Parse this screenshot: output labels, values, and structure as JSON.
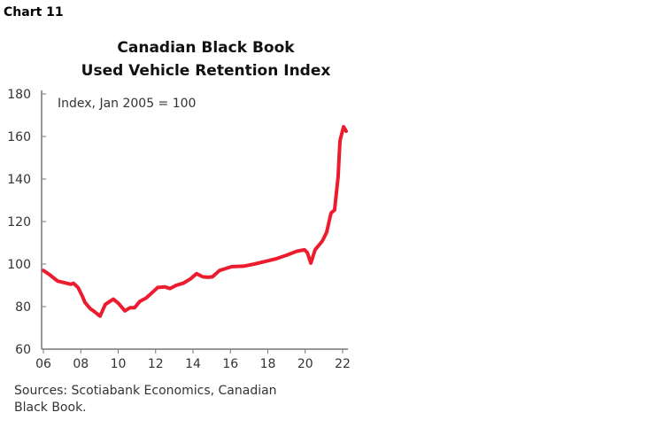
{
  "chart_label": "Chart 11",
  "chart_data": {
    "type": "line",
    "title": "Canadian Black Book",
    "subtitle": "Used Vehicle Retention Index",
    "annotation": "Index, Jan 2005 = 100",
    "source": "Sources: Scotiabank Economics, Canadian Black Book.",
    "source_lines": [
      "Sources: Scotiabank Economics, Canadian",
      "Black Book."
    ],
    "xlim": [
      2006,
      2022
    ],
    "ylim": [
      60,
      180
    ],
    "xticks": [
      2006,
      2008,
      2010,
      2012,
      2014,
      2016,
      2018,
      2020,
      2022
    ],
    "xtick_labels": [
      "06",
      "08",
      "10",
      "12",
      "14",
      "16",
      "18",
      "20",
      "22"
    ],
    "yticks": [
      60,
      80,
      100,
      120,
      140,
      160,
      180
    ],
    "ytick_labels": [
      "60",
      "80",
      "100",
      "120",
      "140",
      "160",
      "180"
    ],
    "grid": false,
    "line_color": "#EC1C2E",
    "series": [
      {
        "x": [
          2006.0,
          2006.33,
          2006.76,
          2007.23,
          2007.47,
          2007.61,
          2007.85,
          2008.08,
          2008.22,
          2008.51,
          2008.75,
          2009.03,
          2009.31,
          2009.74,
          2010.02,
          2010.36,
          2010.64,
          2010.88,
          2011.16,
          2011.49,
          2011.87,
          2012.11,
          2012.49,
          2012.77,
          2013.1,
          2013.48,
          2013.86,
          2014.19,
          2014.52,
          2014.8,
          2015.04,
          2015.42,
          2016.08,
          2016.7,
          2017.27,
          2017.88,
          2018.45,
          2019.02,
          2019.54,
          2019.96,
          2020.11,
          2020.3,
          2020.53,
          2020.91,
          2021.15,
          2021.38,
          2021.57,
          2021.76,
          2021.86,
          2022.05,
          2022.19
        ],
        "y": [
          97,
          95,
          92,
          91,
          90.5,
          91,
          89,
          85,
          82,
          79,
          77.5,
          75.5,
          81,
          83.5,
          81.5,
          78,
          79.5,
          79.5,
          82.5,
          84,
          87,
          89,
          89.3,
          88.5,
          90,
          91,
          93,
          95.5,
          94,
          93.8,
          94,
          97,
          98.8,
          99,
          100,
          101.3,
          102.5,
          104.2,
          106,
          106.7,
          105.4,
          100.4,
          106.7,
          110.8,
          115,
          124,
          125.4,
          141,
          158,
          164.6,
          162.5
        ]
      }
    ]
  }
}
